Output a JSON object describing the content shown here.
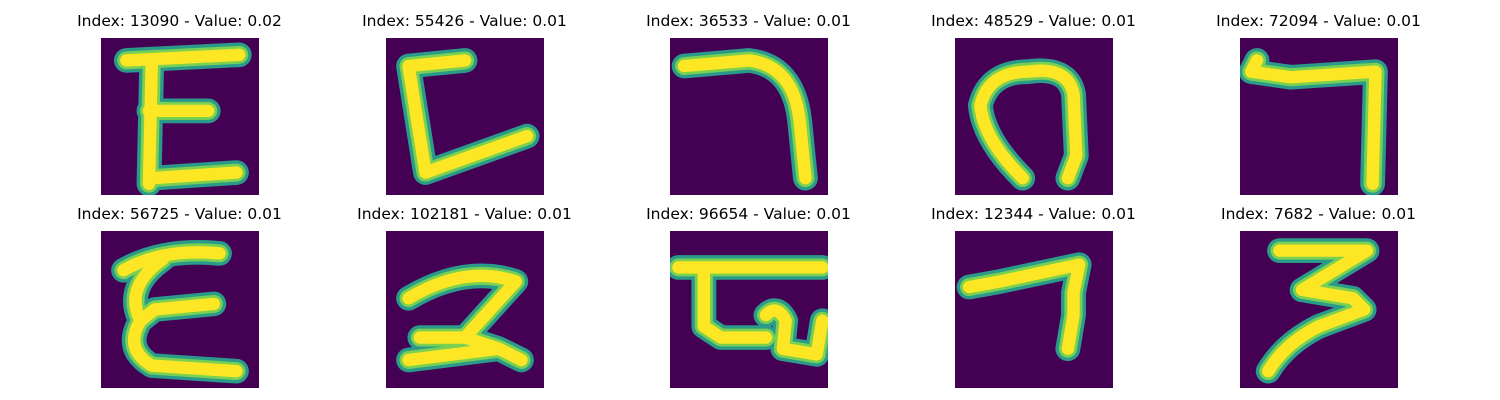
{
  "colors": {
    "background": "#440154",
    "stroke_edge": "#2a9b8a",
    "stroke_mid": "#7ad151",
    "stroke_core": "#fde725"
  },
  "samples": [
    {
      "index": "13090",
      "value": "0.02",
      "title": "Index: 13090 - Value: 0.02",
      "glyph": "E-shape"
    },
    {
      "index": "55426",
      "value": "0.01",
      "title": "Index: 55426 - Value: 0.01",
      "glyph": "L-shape"
    },
    {
      "index": "36533",
      "value": "0.01",
      "title": "Index: 36533 - Value: 0.01",
      "glyph": "hook-shape"
    },
    {
      "index": "48529",
      "value": "0.01",
      "title": "Index: 48529 - Value: 0.01",
      "glyph": "loop-shape"
    },
    {
      "index": "72094",
      "value": "0.01",
      "title": "Index: 72094 - Value: 0.01",
      "glyph": "7-shape"
    },
    {
      "index": "56725",
      "value": "0.01",
      "title": "Index: 56725 - Value: 0.01",
      "glyph": "E-shape"
    },
    {
      "index": "102181",
      "value": "0.01",
      "title": "Index: 102181 - Value: 0.01",
      "glyph": "2-shape"
    },
    {
      "index": "96654",
      "value": "0.01",
      "title": "Index: 96654 - Value: 0.01",
      "glyph": "box-shape"
    },
    {
      "index": "12344",
      "value": "0.01",
      "title": "Index: 12344 - Value: 0.01",
      "glyph": "7-shape"
    },
    {
      "index": "7682",
      "value": "0.01",
      "title": "Index: 7682 - Value: 0.01",
      "glyph": "3-shape"
    }
  ]
}
